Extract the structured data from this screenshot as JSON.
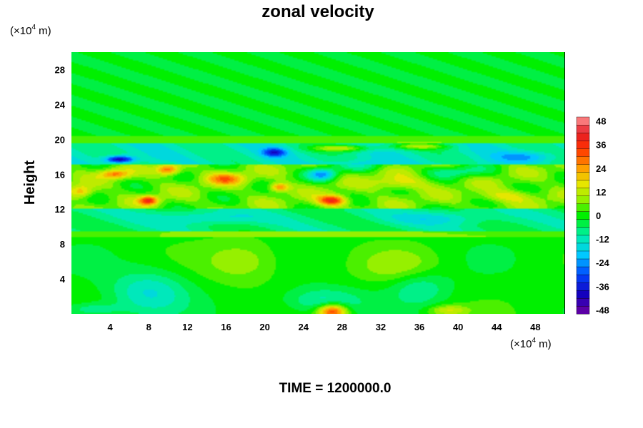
{
  "chart_data": {
    "type": "heatmap",
    "title": "zonal velocity",
    "ylabel": "Height",
    "xlabel": "",
    "x_unit_prefix": "(×10",
    "x_unit_exp": "4",
    "x_unit_suffix": " m)",
    "y_unit_prefix": "(×10",
    "y_unit_exp": "4",
    "y_unit_suffix": " m)",
    "xlim": [
      0,
      51
    ],
    "ylim": [
      0,
      30
    ],
    "xticks": [
      4,
      8,
      12,
      16,
      20,
      24,
      28,
      32,
      36,
      40,
      44,
      48
    ],
    "yticks": [
      4,
      8,
      12,
      16,
      20,
      24,
      28
    ],
    "colorbar": {
      "ticks": [
        48,
        36,
        24,
        12,
        0,
        -12,
        -24,
        -36,
        -48
      ],
      "range": [
        -50,
        50
      ],
      "levels": 25
    },
    "features": [
      {
        "x": 27,
        "y": 0.3,
        "sx": 1.5,
        "sy": 0.8,
        "v": 36
      },
      {
        "x": 39,
        "y": 0.4,
        "sx": 2.0,
        "sy": 0.6,
        "v": 14
      },
      {
        "x": 8,
        "y": 2.5,
        "sx": 4,
        "sy": 2.5,
        "v": -14
      },
      {
        "x": 26,
        "y": 1.5,
        "sx": 4,
        "sy": 1.5,
        "v": -12
      },
      {
        "x": 36,
        "y": 3,
        "sx": 3,
        "sy": 2,
        "v": -10
      },
      {
        "x": 2,
        "y": 0.5,
        "sx": 3,
        "sy": 0.8,
        "v": -10
      },
      {
        "x": 18,
        "y": 6,
        "sx": 4,
        "sy": 2.5,
        "v": 9
      },
      {
        "x": 34,
        "y": 5.5,
        "sx": 4,
        "sy": 2,
        "v": 8
      },
      {
        "x": 5,
        "y": 17.7,
        "sx": 1.5,
        "sy": 0.4,
        "v": -34
      },
      {
        "x": 21,
        "y": 18.5,
        "sx": 1.2,
        "sy": 0.5,
        "v": -24
      },
      {
        "x": 27,
        "y": 13,
        "sx": 1.5,
        "sy": 0.6,
        "v": 34
      },
      {
        "x": 8,
        "y": 13,
        "sx": 1,
        "sy": 0.5,
        "v": 30
      },
      {
        "x": 10,
        "y": 16.5,
        "sx": 1.2,
        "sy": 0.6,
        "v": 26
      },
      {
        "x": 4.5,
        "y": 16,
        "sx": 1.5,
        "sy": 0.5,
        "v": 22
      },
      {
        "x": 28,
        "y": 19,
        "sx": 3,
        "sy": 0.4,
        "v": 22
      },
      {
        "x": 36,
        "y": 19.2,
        "sx": 3,
        "sy": 0.35,
        "v": 18
      },
      {
        "x": 1,
        "y": 14,
        "sx": 1.2,
        "sy": 0.7,
        "v": 18
      },
      {
        "x": 21.5,
        "y": 14.5,
        "sx": 1,
        "sy": 0.5,
        "v": 24
      },
      {
        "x": 16,
        "y": 15.5,
        "sx": 2,
        "sy": 0.7,
        "v": 20
      },
      {
        "x": 34,
        "y": 15,
        "sx": 3,
        "sy": 0.8,
        "v": 12
      },
      {
        "x": 45,
        "y": 13.5,
        "sx": 3,
        "sy": 0.7,
        "v": 12
      },
      {
        "x": 26,
        "y": 16,
        "sx": 1.5,
        "sy": 0.7,
        "v": -26
      },
      {
        "x": 40,
        "y": 16.3,
        "sx": 3,
        "sy": 0.7,
        "v": -12
      },
      {
        "x": 14,
        "y": 11,
        "sx": 5,
        "sy": 0.7,
        "v": -10
      },
      {
        "x": 38,
        "y": 11,
        "sx": 5,
        "sy": 0.8,
        "v": -9
      },
      {
        "x": 30,
        "y": 17,
        "sx": 3,
        "sy": 0.6,
        "v": -10
      },
      {
        "x": 47,
        "y": 18,
        "sx": 3,
        "sy": 0.6,
        "v": -12
      }
    ]
  },
  "footer": {
    "label": "TIME = 1200000.0"
  }
}
